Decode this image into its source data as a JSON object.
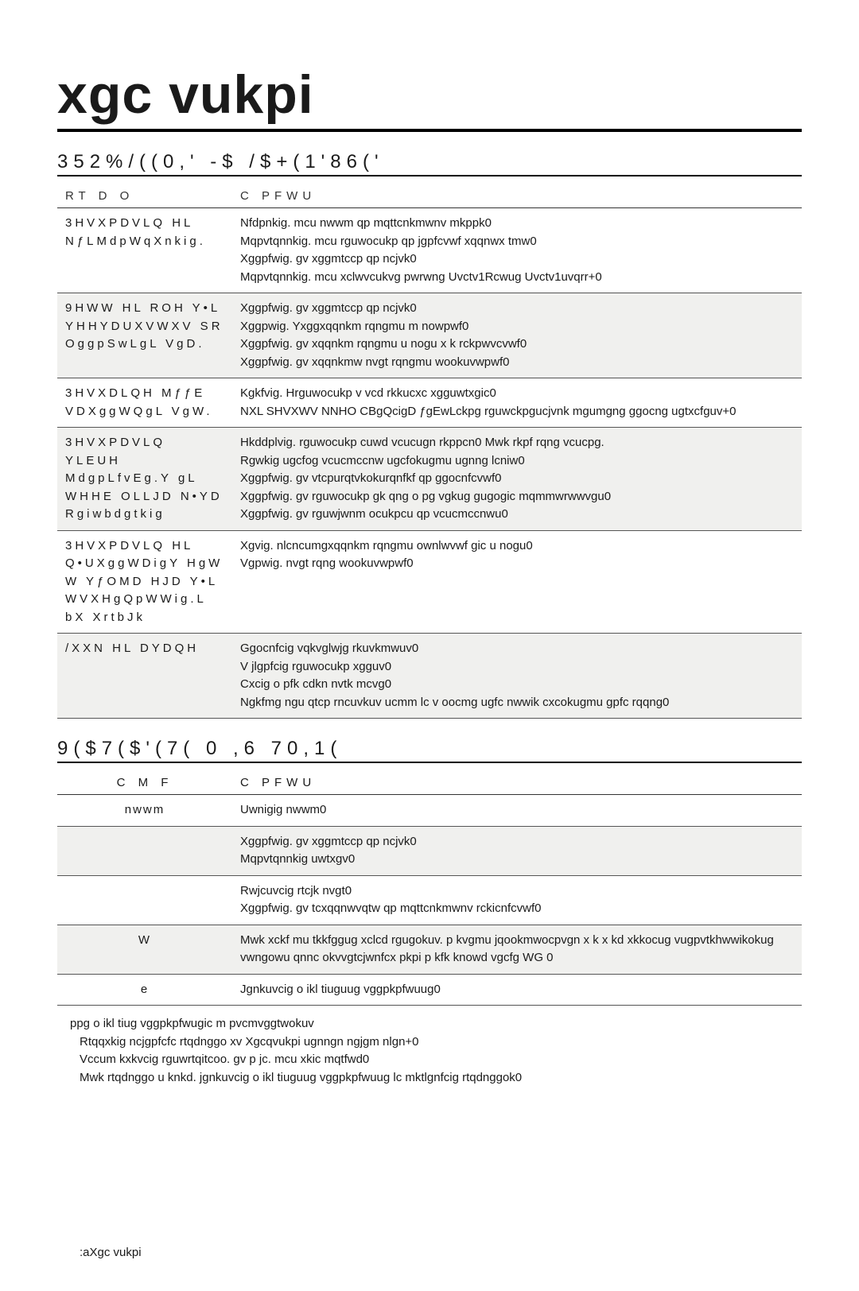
{
  "title": "xgc   vukpi",
  "section1": {
    "heading": "352%/((0,' -$ /$+(1'86('",
    "col1": "RT D   O",
    "col2": "C   PFWU",
    "rows": [
      {
        "left": "3HVXPDVLQ HL NƒLMdpWqXnkig.",
        "right": "Nfdpnkig.  mcu  nwwm  qp  mqttcnkmwnv  mkppk0\nMqpvtqnnkig.   mcu  rguwocukp  qp    jgpfcvwf  xqqnwx  tmw0\nXggpfwig.  gv  xggmtccp  qp  ncjvk0\nMqpvtqnnkig.   mcu  xclwvcukvg  pwrwng  Uvctv1Rcwug    Uvctv1uvqrr+0",
        "alt": false
      },
      {
        "left": "9HWW HL ROH Y•L YHHYDUXVWXV SR OggpSwLgL VgD.",
        "right": "Xggpfwig.  gv  xggmtccp  qp  ncjvk0\nXggpwig. Yxggxqqnkm  rqngmu  m  nowpwf0\nXggpfwig.   gv  xqqnkm  rqngmu  u  nogu  x  k  rckpwvcvwf0\nXggpfwig.   gv  xqqnkmw  nvgt  rqngmu  wookuvwpwf0",
        "alt": true
      },
      {
        "left": "3HVXDLQH MƒƒE VDXggWQgL VgW.",
        "right": "Kgkfvig. Hrguwocukp  v    vcd  rkkucxc  xgguwtxgic0\nNXL SHVXWV NNHO CBgQcigD ƒgEwLckpg  rguwckpgucjvnk  mgumgng    ggocng  ugtxcfguv+0",
        "alt": false
      },
      {
        "left": "3HVXPDVLQ YLEUH MdgpLfvEg.Y gL WHHE OLLJD N•YD Rgiwbdgtkig",
        "right": "Hkddplvig.  rguwocukp  cuwd  vcucugn  rkppcn0  Mwk  rkpf  rqng  vcucpg.\nRgwkig  ugcfog  vcucmccnw  ugcfokugmu  ugnng  lcniw0\nXggpfwig.   gv  vtcpurqtvkokurqnfkf  qp  ggocnfcvwf0\nXggpfwig.   gv  rguwocukp  gk  qng  o  pg  vgkug  gugogic  mqmmwrwwvgu0\nXggpfwig.   gv  rguwjwnm  ocukpcu  qp  vcucmccnwu0",
        "alt": true
      },
      {
        "left": "3HVXPDVLQ HL Q•UXggWDigY HgW W YƒOMD HJD Y•L WVXHgQpWWig.L bX XrtbJk",
        "right": "Xgvig. nlcncumgxqqnkm  rqngmu  ownlwvwf  gic  u  nogu0\nVgpwig.   nvgt  rqng  wookuvwpwf0",
        "alt": false
      },
      {
        "left": "/XXN HL DYDQH",
        "right": "Ggocnfcig  vqkvglwjg  rkuvkmwuv0\nV  jlgpfcig  rguwocukp  xgguv0\nCxcig  o  pfk  cdkn   nvtk  mcvg0\nNgkfmg    ngu  qtcp    rncuvkuv  ucmm  lc  v  oocmg  ugfc   nwwik  cxcokugmu  gpfc  rqqng0",
        "alt": true
      }
    ]
  },
  "section2": {
    "heading": "9($7($'(7( 0 ,6 70,1(",
    "col1": "C  M   F",
    "col2": "C   PFWU",
    "rows": [
      {
        "c1": "nwwm",
        "c2": "Uwnigig   nwwm0",
        "alt": false
      },
      {
        "c1": "",
        "c2": "Xggpfwig.  gv  xggmtccp  qp   ncjvk0\nMqpvtqnnkig  uwtxgv0",
        "alt": true
      },
      {
        "c1": "",
        "c2": "Rwjcuvcig  rtcjk  nvgt0\nXggpfwig.  gv    tcxqqnwvqtw  qp  mqttcnkmwnv  rckicnfcvwf0",
        "alt": false
      },
      {
        "c1": "W",
        "c2": "Mwk  xckf    mu  tkkfggug  xclcd  rgugokuv.  p  kvgmu  jqookmwocpvgn   x   k    x  kd  xkkocug  vugpvtkhwwikokug  vwngowu  qnnc  okvvgtcjwnfcx  pkpi  p   kfk knowd  vgcfg    WG  0",
        "alt": true
      },
      {
        "c1": "e",
        "c2": "Jgnkuvcig  o    ikl  tiuguug  vggpkpfwuug0",
        "alt": false
      }
    ],
    "notes_head": "ppg  o   ikl  tiug  vggpkpfwugic  m   pvcmvggtwokuv",
    "notes": "Rtqqxkig  ncjgpfcfc  rtqdnggo    xv    Xgcqvukpi    ugnngn  ngjgm  nlgn+0\nVccum  kxkvcig  rguwrtqitcoo.  gv  p  jc.  mcu  xkic  mqtfwd0\nMwk  rtqdnggo  u  knkd.  jgnkuvcig  o    ikl  tiuguug  vggpkpfwuug  lc  mktlgnfcig  rtqdnggok0"
  },
  "footer": ":aXgc  vukpi"
}
